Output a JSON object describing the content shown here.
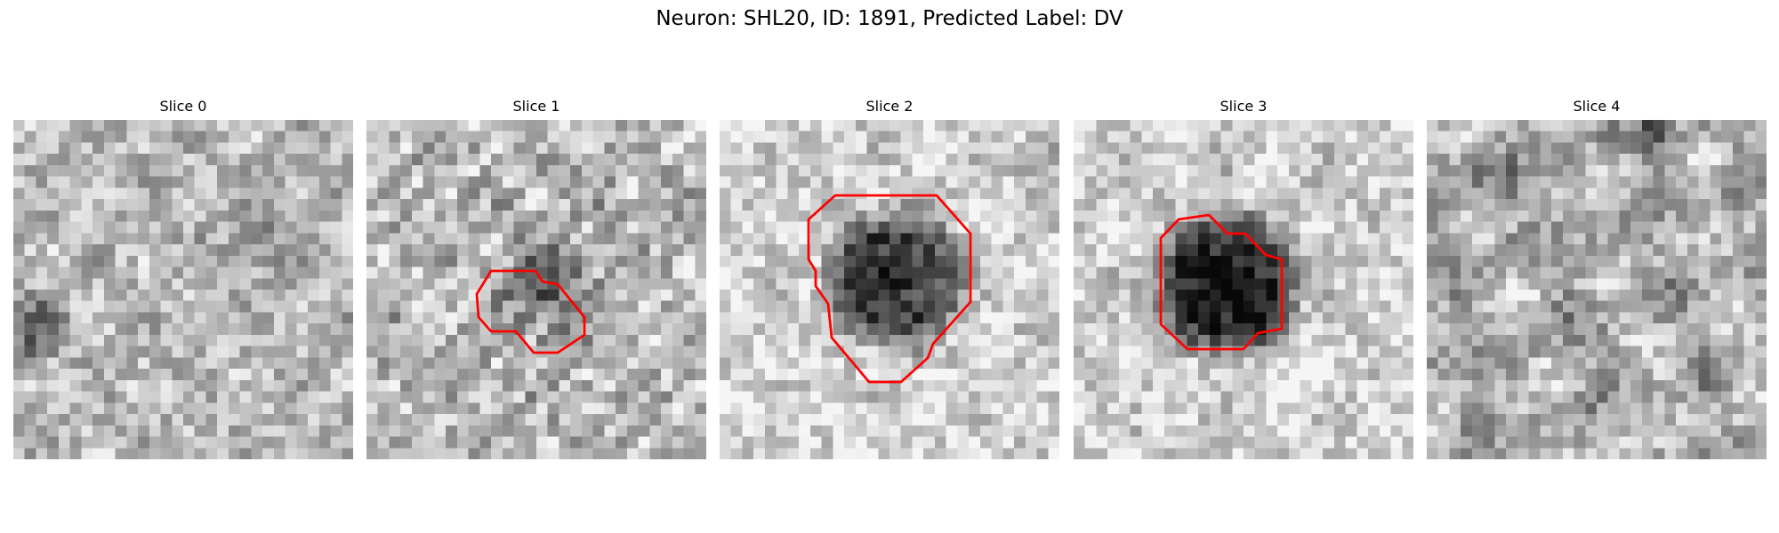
{
  "figure": {
    "title": "Neuron: SHL20, ID: 1891, Predicted Label: DV"
  },
  "slices": [
    {
      "title": "Slice 0",
      "has_contour": false,
      "blob": "none"
    },
    {
      "title": "Slice 1",
      "has_contour": true,
      "blob": "small-dark"
    },
    {
      "title": "Slice 2",
      "has_contour": true,
      "blob": "large-dark"
    },
    {
      "title": "Slice 3",
      "has_contour": true,
      "blob": "very-dark"
    },
    {
      "title": "Slice 4",
      "has_contour": false,
      "blob": "none"
    }
  ],
  "colors": {
    "contour": "#ff0000",
    "colormap": "grayscale"
  },
  "grid_size": 30
}
